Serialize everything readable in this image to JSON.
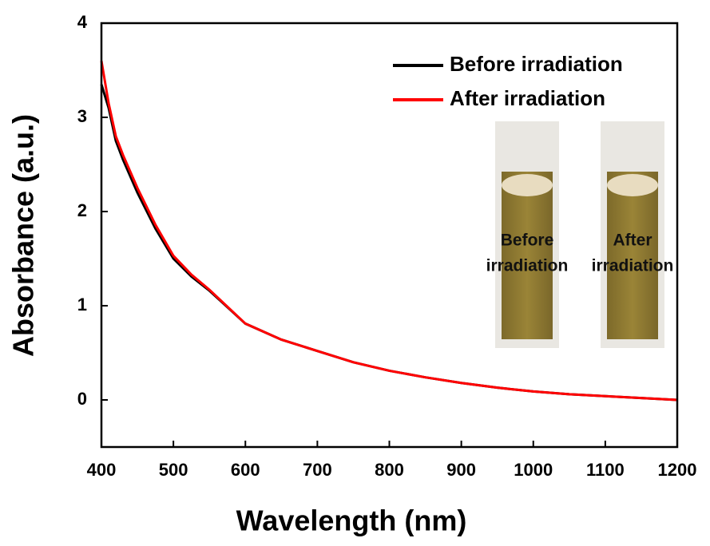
{
  "chart_data": {
    "type": "line",
    "xlabel": "Wavelength (nm)",
    "ylabel": "Absorbance (a.u.)",
    "x": [
      400,
      410,
      420,
      430,
      450,
      475,
      500,
      525,
      550,
      600,
      650,
      700,
      750,
      800,
      850,
      900,
      950,
      1000,
      1050,
      1100,
      1150,
      1200
    ],
    "series": [
      {
        "name": "Before irradiation",
        "color": "#000000",
        "values": [
          3.35,
          3.1,
          2.75,
          2.55,
          2.2,
          1.82,
          1.5,
          1.31,
          1.16,
          0.81,
          0.64,
          0.52,
          0.4,
          0.31,
          0.24,
          0.18,
          0.13,
          0.09,
          0.06,
          0.04,
          0.02,
          0.0
        ]
      },
      {
        "name": "After irradiation",
        "color": "#ff0000",
        "values": [
          3.6,
          3.15,
          2.8,
          2.6,
          2.25,
          1.86,
          1.53,
          1.33,
          1.17,
          0.81,
          0.64,
          0.52,
          0.4,
          0.31,
          0.24,
          0.18,
          0.13,
          0.09,
          0.06,
          0.04,
          0.02,
          0.0
        ]
      }
    ],
    "xlim": [
      400,
      1200
    ],
    "xticks": [
      400,
      500,
      600,
      700,
      800,
      900,
      1000,
      1100,
      1200
    ],
    "ylim": [
      -0.5,
      4
    ],
    "yticks": [
      0,
      1,
      2,
      3,
      4
    ],
    "legend": "upper right",
    "inset_labels": [
      [
        "Before",
        "irradiation"
      ],
      [
        "After",
        "irradiation"
      ]
    ]
  }
}
